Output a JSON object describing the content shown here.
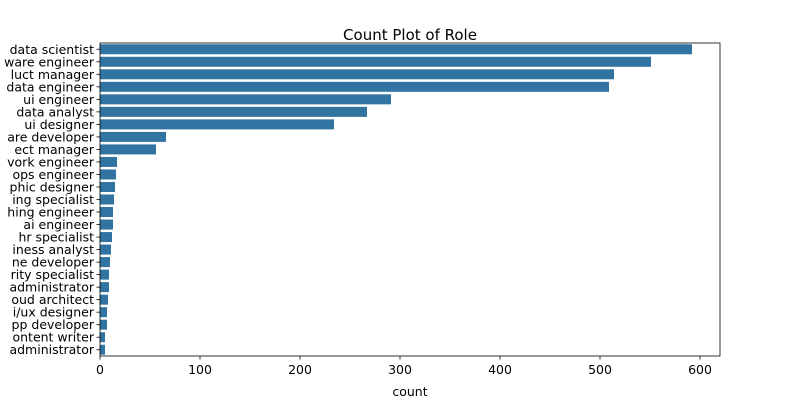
{
  "chart_data": {
    "type": "bar",
    "orientation": "horizontal",
    "title": "Count Plot of Role",
    "xlabel": "count",
    "ylabel": "",
    "xlim": [
      0,
      620
    ],
    "xticks": [
      0,
      100,
      200,
      300,
      400,
      500,
      600
    ],
    "grid": false,
    "legend": "none",
    "bar_color": "#3274a1",
    "categories": [
      "data scientist",
      "ware engineer",
      "luct manager",
      "data engineer",
      "ui engineer",
      "data analyst",
      "ui designer",
      "are developer",
      "ect manager",
      "vork engineer",
      "ops engineer",
      "phic designer",
      "ing specialist",
      "hing engineer",
      "ai engineer",
      "hr specialist",
      "iness analyst",
      "ne developer",
      "rity specialist",
      "administrator",
      "oud architect",
      "i/ux designer",
      "pp developer",
      "ontent writer",
      "administrator"
    ],
    "values": [
      592,
      551,
      514,
      509,
      291,
      267,
      234,
      66,
      56,
      17,
      16,
      15,
      14,
      13,
      13,
      12,
      11,
      10,
      9,
      9,
      8,
      7,
      7,
      5,
      5
    ]
  }
}
